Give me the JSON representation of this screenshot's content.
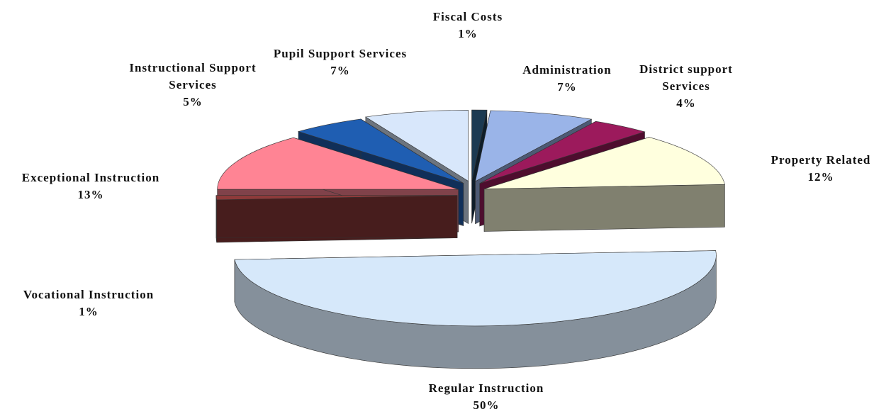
{
  "chart_data": {
    "type": "pie",
    "categories": [
      "Fiscal Costs",
      "Administration",
      "District support Services",
      "Property Related",
      "Regular Instruction",
      "Vocational Instruction",
      "Exceptional Instruction",
      "Instructional Support Services",
      "Pupil Support Services"
    ],
    "values": [
      1,
      7,
      4,
      12,
      50,
      1,
      13,
      5,
      7
    ],
    "value_labels": [
      "1%",
      "7%",
      "4%",
      "12%",
      "50%",
      "1%",
      "13%",
      "5%",
      "7%"
    ],
    "colors": [
      "#1c3a52",
      "#9ab4e8",
      "#9c1a5c",
      "#ffffde",
      "#d6e8fa",
      "#8e3a3a",
      "#ff8494",
      "#1f5eb2",
      "#d8e7fb"
    ]
  }
}
